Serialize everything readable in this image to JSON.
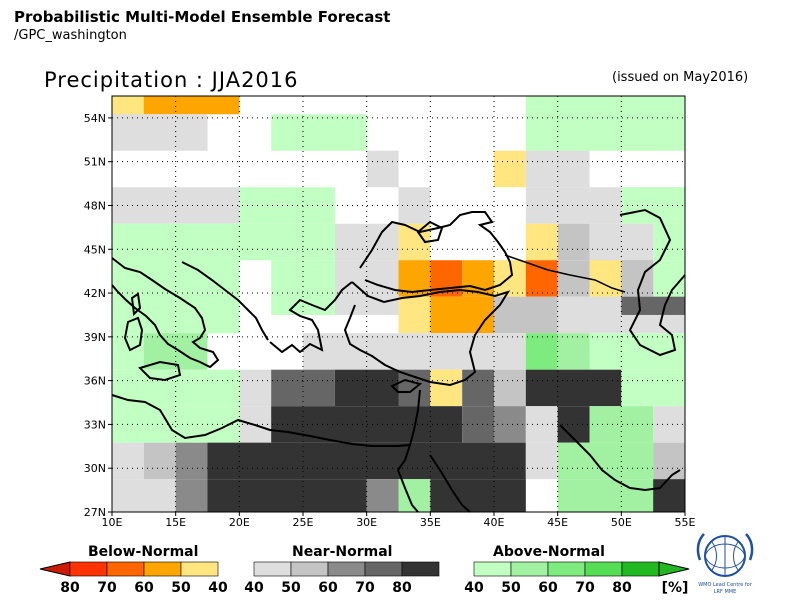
{
  "header": {
    "title": "Probabilistic Multi-Model Ensemble Forecast",
    "source": "/GPC_washington"
  },
  "map": {
    "title": "Precipitation : JJA2016",
    "issued": "(issued on May2016)",
    "lon_labels": [
      "10E",
      "15E",
      "20E",
      "25E",
      "30E",
      "35E",
      "40E",
      "45E",
      "50E",
      "55E"
    ],
    "lat_labels": [
      "27N",
      "30N",
      "33N",
      "36N",
      "39N",
      "42N",
      "45N",
      "48N",
      "51N",
      "54N"
    ],
    "lon_range": [
      10,
      55
    ],
    "lat_range": [
      27,
      55.5
    ],
    "grid": true
  },
  "colors": {
    "below": [
      "#cc1b00",
      "#ff3300",
      "#ff6600",
      "#ffa500",
      "#ffe680"
    ],
    "near": [
      "#dedede",
      "#c4c4c4",
      "#8a8a8a",
      "#666666",
      "#333333"
    ],
    "above": [
      "#c2ffc2",
      "#a2f0a2",
      "#7deb7d",
      "#55dd55",
      "#22b822"
    ]
  },
  "legend": {
    "below": {
      "title": "Below-Normal",
      "labels": [
        "80",
        "70",
        "60",
        "50",
        "40"
      ]
    },
    "near": {
      "title": "Near-Normal",
      "labels": [
        "40",
        "50",
        "60",
        "70",
        "80"
      ]
    },
    "above": {
      "title": "Above-Normal",
      "labels": [
        "40",
        "50",
        "60",
        "70",
        "80"
      ],
      "unit": "[%]"
    }
  },
  "logo": {
    "caption1": "WMO Lead Centre for",
    "caption2": "LRF MME"
  }
}
